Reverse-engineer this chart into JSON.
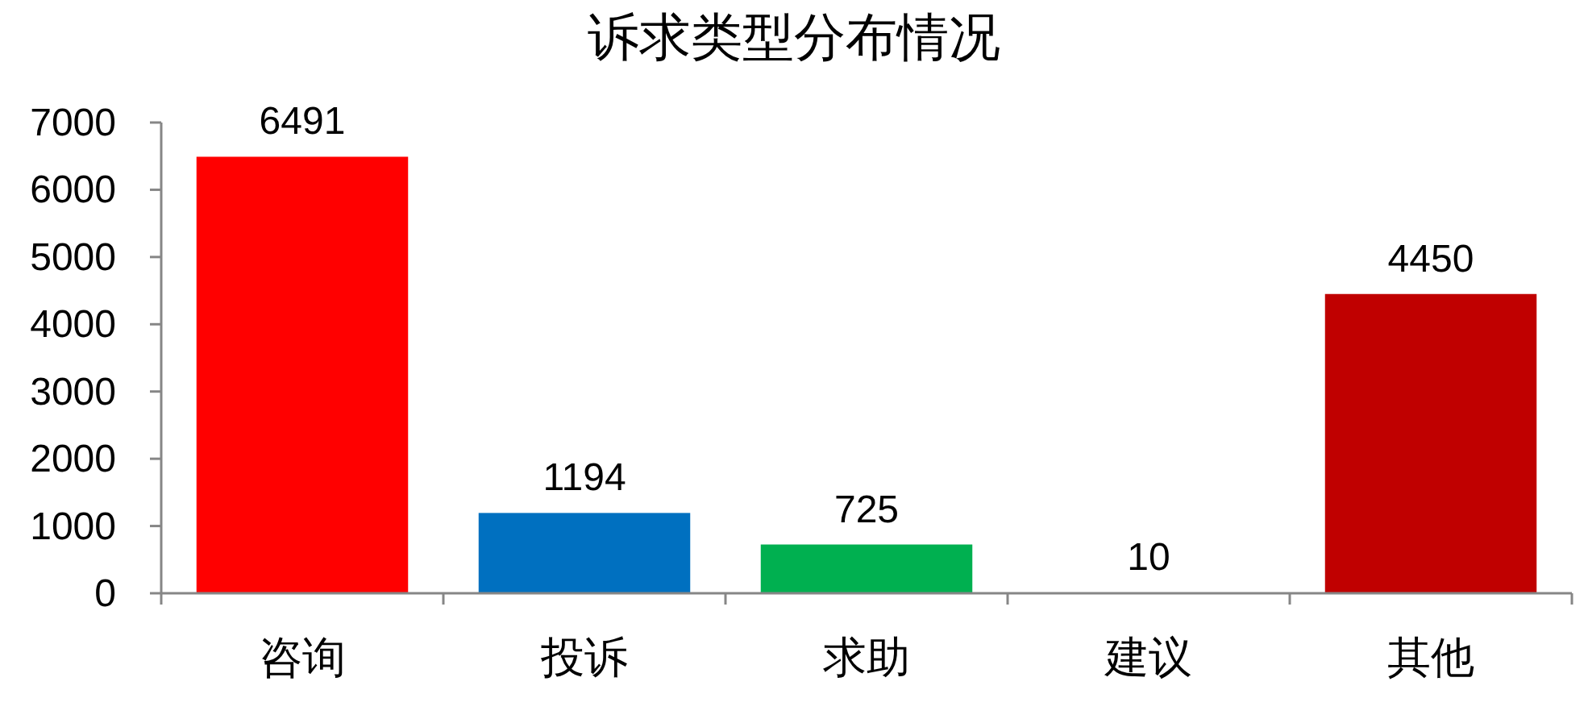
{
  "chart_data": {
    "type": "bar",
    "title": "诉求类型分布情况",
    "categories": [
      "咨询",
      "投诉",
      "求助",
      "建议",
      "其他"
    ],
    "values": [
      6491,
      1194,
      725,
      10,
      4450
    ],
    "colors": [
      "#ff0000",
      "#0070c0",
      "#00b050",
      "#ffff00",
      "#c00000"
    ],
    "ylim": [
      0,
      7000
    ],
    "yticks": [
      0,
      1000,
      2000,
      3000,
      4000,
      5000,
      6000,
      7000
    ],
    "data_labels": true,
    "grid": false,
    "legend": false
  }
}
